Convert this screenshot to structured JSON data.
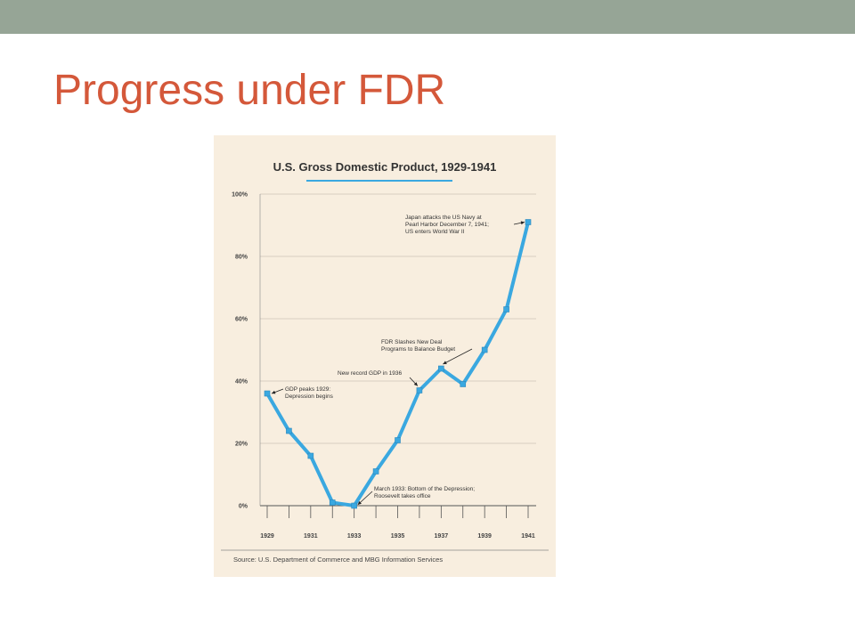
{
  "slide": {
    "title": "Progress under FDR"
  },
  "colors": {
    "title": "#d4583a",
    "top_bar": "#96a596",
    "chart_background": "#f8eedf",
    "series_line": "#3aa8e0"
  },
  "chart_data": {
    "type": "line",
    "title": "U.S. Gross Domestic Product, 1929-1941",
    "x": [
      1929,
      1930,
      1931,
      1932,
      1933,
      1934,
      1935,
      1936,
      1937,
      1938,
      1939,
      1940,
      1941
    ],
    "values": [
      36,
      24,
      16,
      1,
      0,
      11,
      21,
      37,
      44,
      39,
      50,
      63,
      91
    ],
    "xticks": [
      "1929",
      "1931",
      "1933",
      "1935",
      "1937",
      "1939",
      "1941"
    ],
    "yticks": [
      "100%",
      "80%",
      "60%",
      "40%",
      "20%",
      "0%"
    ],
    "ylim": [
      0,
      100
    ],
    "xlabel": "",
    "ylabel": "",
    "grid": true,
    "annotations": [
      {
        "lines": [
          "GDP peaks 1929:",
          "Depression begins"
        ],
        "year": 1929
      },
      {
        "lines": [
          "March 1933: Bottom of the Depression;",
          "Roosevelt takes office"
        ],
        "year": 1933
      },
      {
        "lines": [
          "New record GDP in 1936"
        ],
        "year": 1936
      },
      {
        "lines": [
          "FDR Slashes New Deal",
          "Programs to Balance Budget"
        ],
        "year": 1937
      },
      {
        "lines": [
          "Japan attacks the US Navy at",
          "Pearl Harbor December 7, 1941;",
          "US enters World War II"
        ],
        "year": 1941
      }
    ],
    "source": "Source: U.S. Department of Commerce and MBG Information Services"
  }
}
